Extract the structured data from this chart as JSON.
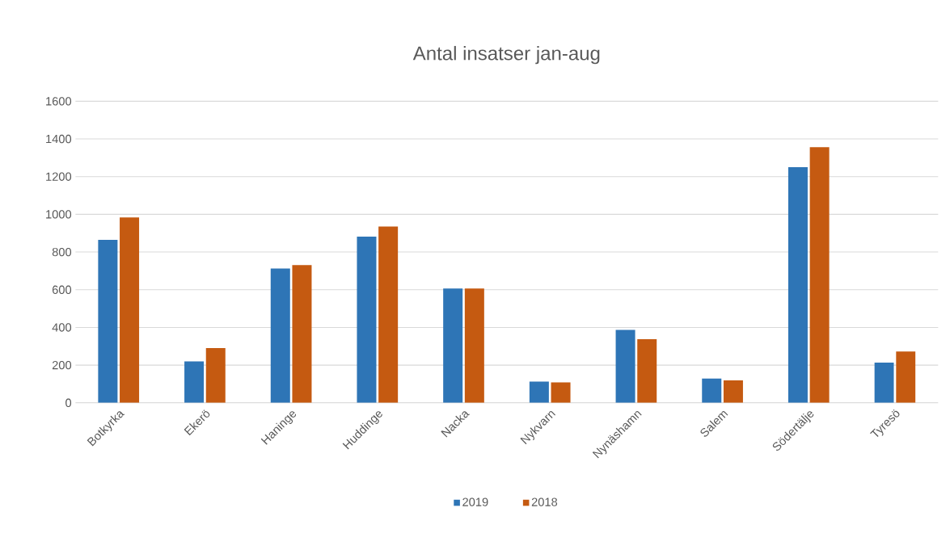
{
  "chart_data": {
    "type": "bar",
    "title": "Antal insatser jan-aug",
    "categories": [
      "Botkyrka",
      "Ekerö",
      "Haninge",
      "Huddinge",
      "Nacka",
      "Nykvarn",
      "Nynäshamn",
      "Salem",
      "Södertälje",
      "Tyresö"
    ],
    "series": [
      {
        "name": "2019",
        "color": "#2e75b6",
        "values": [
          865,
          220,
          712,
          882,
          606,
          113,
          387,
          129,
          1250,
          213
        ]
      },
      {
        "name": "2018",
        "color": "#c55a11",
        "values": [
          983,
          291,
          731,
          935,
          606,
          108,
          338,
          119,
          1356,
          272
        ]
      }
    ],
    "ylim": [
      0,
      1600
    ],
    "yticks": [
      0,
      200,
      400,
      600,
      800,
      1000,
      1200,
      1400,
      1600
    ],
    "grid": "y",
    "legend": "bottom"
  }
}
